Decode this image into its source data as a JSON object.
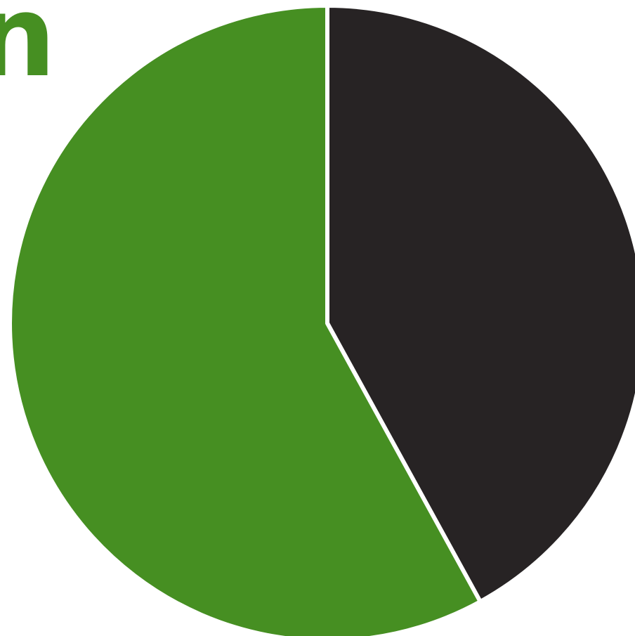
{
  "chart_data": {
    "type": "pie",
    "title": "",
    "series": [
      {
        "values": [
          42,
          58
        ]
      }
    ],
    "start_angle_deg": 0,
    "direction": "clockwise",
    "colors": [
      "#272324",
      "#468f22"
    ],
    "separator_color": "#ffffff",
    "legend": "none"
  },
  "visible_text": {
    "clipped_heading_fragment": "n"
  }
}
